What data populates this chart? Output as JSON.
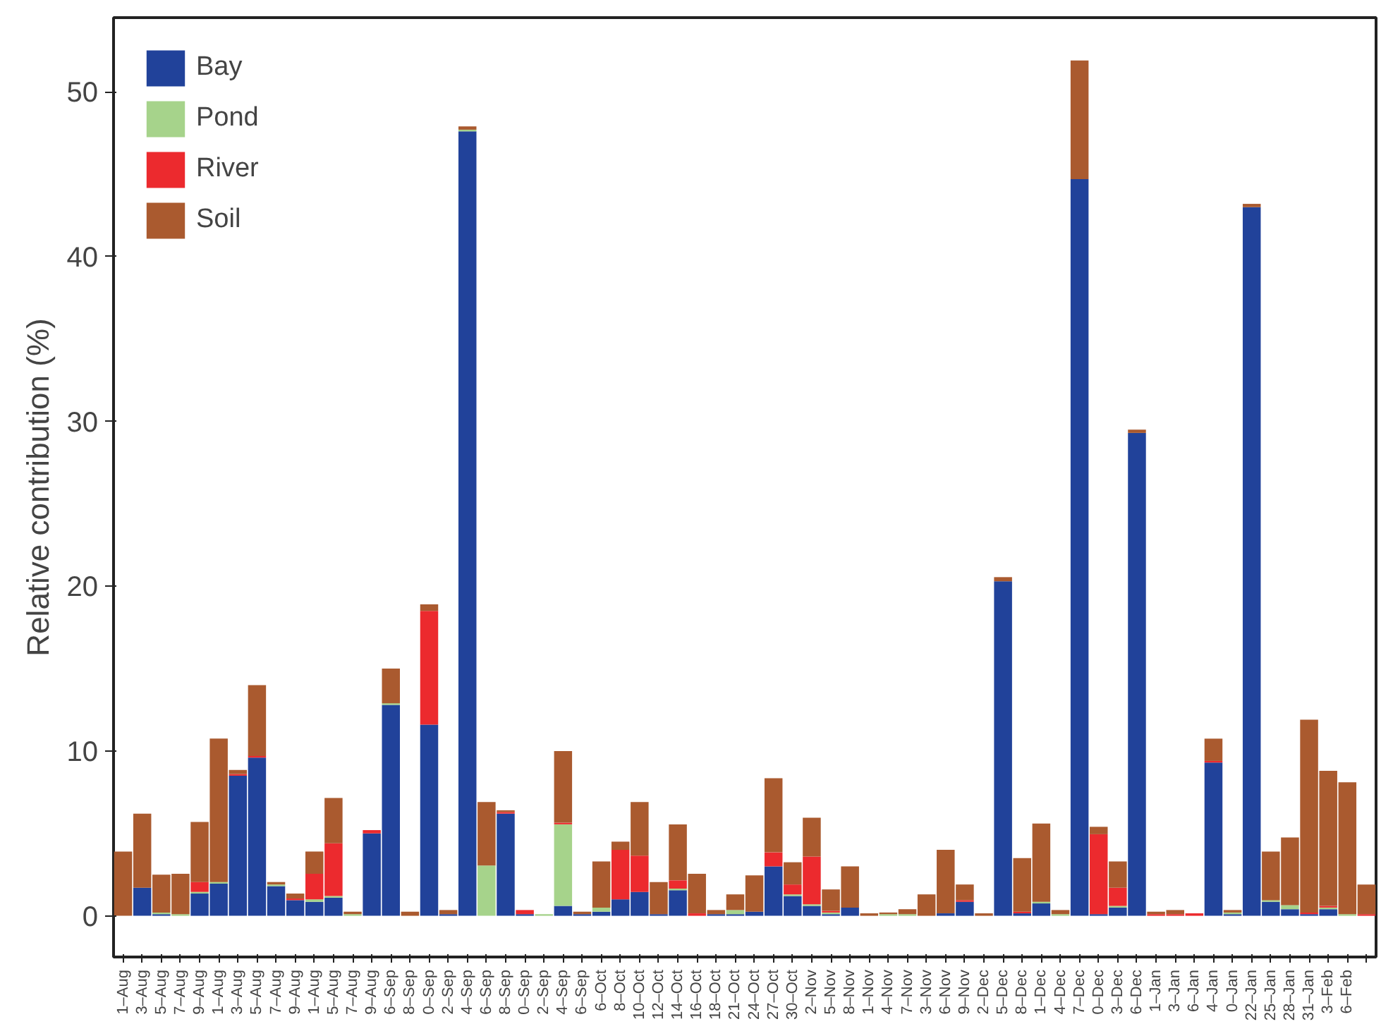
{
  "chart_data": {
    "type": "bar",
    "stacked": true,
    "ylabel": "Relative contribution (%)",
    "categories": [
      "1–Aug",
      "3–Aug",
      "5–Aug",
      "7–Aug",
      "9–Aug",
      "1–Aug",
      "3–Aug",
      "5–Aug",
      "7–Aug",
      "9–Aug",
      "1–Aug",
      "5–Aug",
      "7–Aug",
      "9–Aug",
      "6–Sep",
      "8–Sep",
      "0–Sep",
      "2–Sep",
      "4–Sep",
      "6–Sep",
      "8–Sep",
      "0–Sep",
      "2–Sep",
      "4–Sep",
      "6–Sep",
      "6–Oct",
      "8–Oct",
      "10–Oct",
      "12–Oct",
      "14–Oct",
      "16–Oct",
      "18–Oct",
      "21–Oct",
      "24–Oct",
      "27–Oct",
      "30–Oct",
      "2–Nov",
      "5–Nov",
      "8–Nov",
      "1–Nov",
      "4–Nov",
      "7–Nov",
      "3–Nov",
      "6–Nov",
      "9–Nov",
      "2–Dec",
      "5–Dec",
      "8–Dec",
      "1–Dec",
      "4–Dec",
      "7–Dec",
      "0–Dec",
      "3–Dec",
      "6–Dec",
      "1–Jan",
      "3–Jan",
      "6–Jan",
      "4–Jan",
      "0–Jan",
      "22–Jan",
      "25–Jan",
      "28–Jan",
      "31–Jan",
      "3–Feb",
      "6–Feb",
      null
    ],
    "series": [
      {
        "name": "Bay",
        "color": "#21429a",
        "values": [
          0,
          1.7,
          0.1,
          0,
          1.35,
          1.95,
          8.5,
          9.6,
          1.8,
          0.95,
          0.85,
          1.1,
          0,
          5.0,
          12.8,
          0,
          11.6,
          0.1,
          47.6,
          0,
          6.2,
          0.1,
          0,
          0.6,
          0.1,
          0.25,
          1.0,
          1.45,
          0.1,
          1.55,
          0,
          0.1,
          0.1,
          0.25,
          3.0,
          1.2,
          0.6,
          0.1,
          0.5,
          0,
          0,
          0,
          0,
          0.15,
          0.85,
          0,
          20.3,
          0.15,
          0.75,
          0,
          44.7,
          0.1,
          0.5,
          29.3,
          0,
          0,
          0,
          9.3,
          0.1,
          43.0,
          0.85,
          0.4,
          0.1,
          0.4,
          0,
          0
        ]
      },
      {
        "name": "Pond",
        "color": "#a6d38b",
        "values": [
          0,
          0,
          0.1,
          0.1,
          0.1,
          0.1,
          0,
          0,
          0.1,
          0,
          0.15,
          0.1,
          0.1,
          0,
          0.1,
          0,
          0,
          0,
          0.1,
          3.05,
          0,
          0,
          0.1,
          4.95,
          0,
          0.25,
          0,
          0,
          0,
          0.1,
          0,
          0,
          0.25,
          0,
          0,
          0.1,
          0.1,
          0.1,
          0,
          0,
          0.1,
          0.1,
          0,
          0,
          0,
          0,
          0,
          0,
          0.1,
          0.1,
          0,
          0,
          0.1,
          0,
          0,
          0,
          0,
          0,
          0.1,
          0,
          0.1,
          0.25,
          0,
          0.1,
          0.1,
          0
        ]
      },
      {
        "name": "River",
        "color": "#ec2a2e",
        "values": [
          0,
          0,
          0,
          0,
          0.6,
          0,
          0.1,
          0.1,
          0,
          0.1,
          1.55,
          3.2,
          0,
          0.2,
          0,
          0,
          6.9,
          0,
          0,
          0,
          0.1,
          0.25,
          0,
          0.1,
          0,
          0,
          3.0,
          2.2,
          0,
          0.5,
          0.15,
          0,
          0,
          0,
          0.85,
          0.6,
          2.9,
          0.1,
          0,
          0,
          0,
          0,
          0,
          0,
          0.1,
          0,
          0,
          0.1,
          0,
          0,
          0,
          4.85,
          1.1,
          0,
          0.1,
          0.1,
          0.15,
          0.1,
          0,
          0,
          0,
          0,
          0.1,
          0.1,
          0,
          0.1
        ]
      },
      {
        "name": "Soil",
        "color": "#aa5a2f",
        "values": [
          3.9,
          4.5,
          2.3,
          2.45,
          3.65,
          8.7,
          0.25,
          4.3,
          0.15,
          0.3,
          1.35,
          2.75,
          0.15,
          0,
          2.1,
          0.25,
          0.4,
          0.25,
          0.2,
          3.85,
          0.1,
          0,
          0,
          4.35,
          0.15,
          2.8,
          0.5,
          3.25,
          1.95,
          3.4,
          2.4,
          0.25,
          0.95,
          2.2,
          4.5,
          1.35,
          2.35,
          1.3,
          2.5,
          0.15,
          0.1,
          0.3,
          1.3,
          3.85,
          0.95,
          0.15,
          0.25,
          3.25,
          4.75,
          0.25,
          7.2,
          0.45,
          1.6,
          0.2,
          0.15,
          0.25,
          0,
          1.35,
          0.15,
          0.2,
          2.95,
          4.1,
          11.7,
          8.2,
          8.0,
          1.8
        ]
      }
    ],
    "ylim": [
      -2.5,
      54.5
    ],
    "yticks": [
      0,
      10,
      20,
      30,
      40,
      50
    ],
    "grid": false,
    "legend": "top left"
  }
}
